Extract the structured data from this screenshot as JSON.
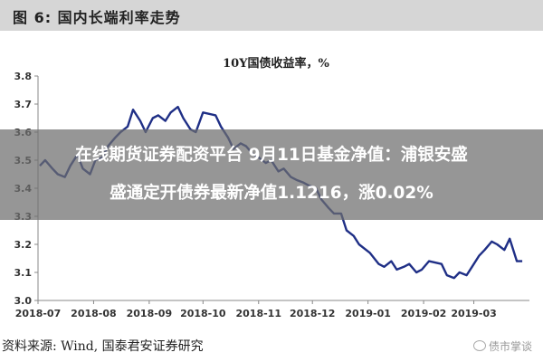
{
  "figure": {
    "title": "图 6:  国内长端利率走势",
    "source": "资料来源:  Wind,  国泰君安证券研究"
  },
  "overlay": {
    "line1": "在线期货证券配资平台 9月11日基金净值：浦银安盛",
    "line2": "盛通定开债券最新净值1.1216，涨0.02%"
  },
  "watermark": "债市掌谈",
  "chart_data": {
    "type": "line",
    "title": "10Y国债收益率，%",
    "xlabel": "",
    "ylabel": "",
    "ylim": [
      3.0,
      3.8
    ],
    "yticks": [
      "3.0",
      "3.1",
      "3.2",
      "3.3",
      "3.4",
      "3.5",
      "3.6",
      "3.7",
      "3.8"
    ],
    "xticks": [
      "2018-07",
      "2018-08",
      "2018-09",
      "2018-10",
      "2018-11",
      "2018-12",
      "2019-01",
      "2019-02",
      "2019-03"
    ],
    "grid": false,
    "legend": "none",
    "color": "#1f2f86",
    "series": [
      {
        "x": [
          "2018-07-02",
          "2018-07-05",
          "2018-07-09",
          "2018-07-12",
          "2018-07-16",
          "2018-07-19",
          "2018-07-23",
          "2018-07-26",
          "2018-07-30",
          "2018-08-02",
          "2018-08-06",
          "2018-08-09",
          "2018-08-13",
          "2018-08-16",
          "2018-08-20",
          "2018-08-23",
          "2018-08-27",
          "2018-08-30",
          "2018-09-03",
          "2018-09-06",
          "2018-09-10",
          "2018-09-13",
          "2018-09-17",
          "2018-09-20",
          "2018-09-24",
          "2018-09-27",
          "2018-10-01",
          "2018-10-08",
          "2018-10-11",
          "2018-10-15",
          "2018-10-18",
          "2018-10-22",
          "2018-10-25",
          "2018-10-29",
          "2018-11-01",
          "2018-11-05",
          "2018-11-08",
          "2018-11-12",
          "2018-11-15",
          "2018-11-19",
          "2018-11-22",
          "2018-11-26",
          "2018-11-29",
          "2018-12-03",
          "2018-12-06",
          "2018-12-10",
          "2018-12-13",
          "2018-12-17",
          "2018-12-20",
          "2018-12-24",
          "2018-12-27",
          "2019-01-02",
          "2019-01-07",
          "2019-01-10",
          "2019-01-14",
          "2019-01-17",
          "2019-01-21",
          "2019-01-24",
          "2019-01-28",
          "2019-01-31",
          "2019-02-04",
          "2019-02-11",
          "2019-02-14",
          "2019-02-18",
          "2019-02-21",
          "2019-02-25",
          "2019-02-28",
          "2019-03-04",
          "2019-03-07",
          "2019-03-11",
          "2019-03-14",
          "2019-03-18",
          "2019-03-21",
          "2019-03-25",
          "2019-03-28"
        ],
        "y": [
          3.48,
          3.5,
          3.47,
          3.45,
          3.44,
          3.48,
          3.52,
          3.47,
          3.45,
          3.5,
          3.51,
          3.55,
          3.58,
          3.6,
          3.62,
          3.68,
          3.64,
          3.6,
          3.65,
          3.66,
          3.64,
          3.67,
          3.69,
          3.65,
          3.61,
          3.6,
          3.67,
          3.66,
          3.62,
          3.58,
          3.54,
          3.56,
          3.55,
          3.52,
          3.51,
          3.49,
          3.5,
          3.46,
          3.47,
          3.44,
          3.43,
          3.42,
          3.41,
          3.4,
          3.36,
          3.33,
          3.31,
          3.31,
          3.25,
          3.23,
          3.2,
          3.17,
          3.13,
          3.12,
          3.14,
          3.11,
          3.12,
          3.13,
          3.1,
          3.11,
          3.14,
          3.13,
          3.09,
          3.08,
          3.1,
          3.09,
          3.12,
          3.16,
          3.18,
          3.21,
          3.2,
          3.18,
          3.22,
          3.14,
          3.14
        ]
      }
    ]
  }
}
